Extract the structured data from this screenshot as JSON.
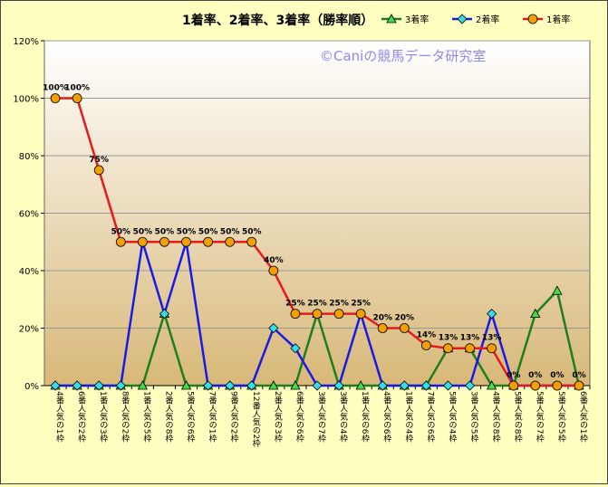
{
  "chart_data": {
    "type": "line",
    "title": "1着率、2着率、3着率（勝率順）",
    "watermark": "©Caniの競馬データ研究室",
    "ylim": [
      0,
      120
    ],
    "yticks": [
      "0%",
      "20%",
      "40%",
      "60%",
      "80%",
      "100%",
      "120%"
    ],
    "grid": true,
    "legend_position": "top-right",
    "categories": [
      "4番人気の1枠",
      "6番人気の2枠",
      "1番人気の3枠",
      "8番人気の2枠",
      "1番人気の5枠",
      "2番人気の8枠",
      "5番人気の6枠",
      "7番人気の1枠",
      "9番人気の2枠",
      "12番人気の2枠",
      "2番人気の3枠",
      "6番人気の6枠",
      "3番人気の7枠",
      "3番人気の4枠",
      "1番人気の6枠",
      "4番人気の6枠",
      "1番人気の4枠",
      "7番人気の6枠",
      "5番人気の4枠",
      "3番人気の5枠",
      "4番人気の8枠",
      "5番人気の8枠",
      "5番人気の7枠",
      "5番人気の5枠",
      "6番人気の1枠"
    ],
    "series": [
      {
        "name": "3着率",
        "color": "#1E7E1E",
        "marker": "triangle",
        "values": [
          0,
          0,
          0,
          0,
          0,
          25,
          0,
          0,
          0,
          0,
          0,
          0,
          25,
          0,
          0,
          0,
          0,
          0,
          13,
          13,
          0,
          0,
          25,
          33,
          0
        ]
      },
      {
        "name": "2着率",
        "color": "#1A1AE6",
        "marker": "diamond",
        "values": [
          0,
          0,
          0,
          0,
          50,
          25,
          50,
          0,
          0,
          0,
          20,
          13,
          0,
          0,
          25,
          0,
          0,
          0,
          0,
          0,
          25,
          0,
          0,
          0,
          0
        ]
      },
      {
        "name": "1着率",
        "color": "#E61A1A",
        "marker": "circle",
        "values": [
          100,
          100,
          75,
          50,
          50,
          50,
          50,
          50,
          50,
          50,
          40,
          25,
          25,
          25,
          25,
          20,
          20,
          14,
          13,
          13,
          13,
          0,
          0,
          0,
          0
        ],
        "data_labels": [
          "100%",
          "100%",
          "75%",
          "50%",
          "50%",
          "50%",
          "50%",
          "50%",
          "50%",
          "50%",
          "40%",
          "25%",
          "25%",
          "25%",
          "25%",
          "20%",
          "20%",
          "14%",
          "13%",
          "13%",
          "13%",
          "0%",
          "0%",
          "0%",
          "0%"
        ]
      }
    ]
  }
}
